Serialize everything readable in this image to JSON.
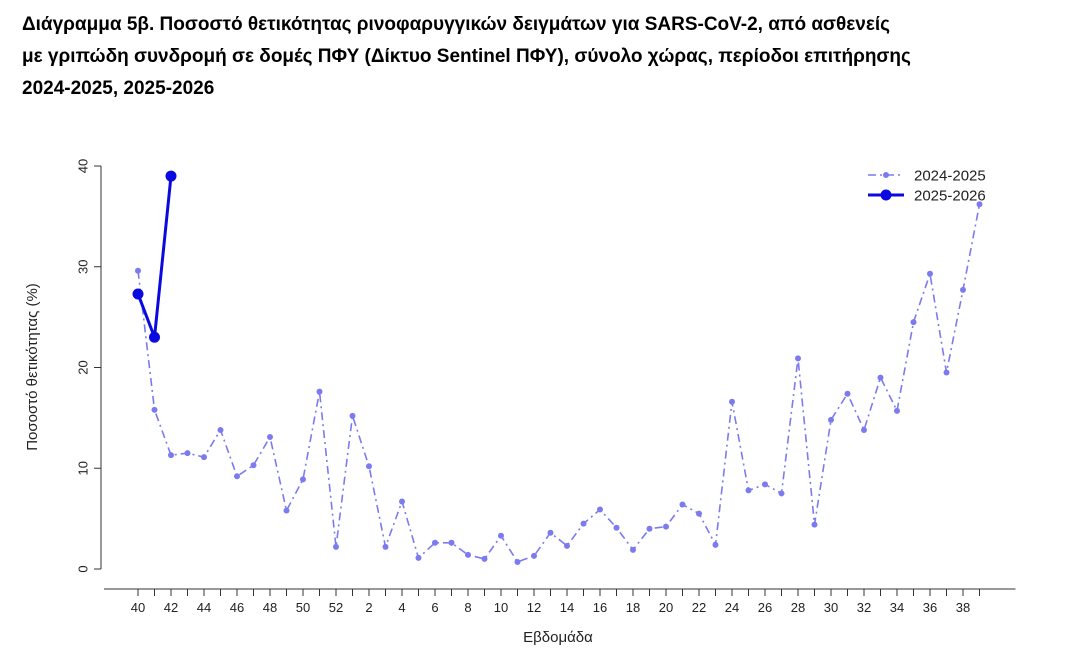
{
  "chart_data": {
    "type": "line",
    "title": [
      "Διάγραμμα 5β. Ποσοστό θετικότητας ρινοφαρυγγικών δειγμάτων για SARS-CoV-2, από ασθενείς",
      "με γριπώδη συνδρομή σε δομές ΠΦΥ (Δίκτυο Sentinel ΠΦΥ), σύνολο χώρας, περίοδοι επιτήρησης",
      "2024-2025, 2025-2026"
    ],
    "xlabel": "Εβδομάδα",
    "ylabel": "Ποσοστό θετικότητας (%)",
    "categories": [
      40,
      null,
      42,
      null,
      44,
      null,
      46,
      null,
      48,
      null,
      50,
      null,
      52,
      null,
      2,
      null,
      4,
      null,
      6,
      null,
      8,
      null,
      10,
      null,
      12,
      null,
      14,
      null,
      16,
      null,
      18,
      null,
      20,
      null,
      22,
      null,
      24,
      null,
      26,
      null,
      28,
      null,
      30,
      null,
      32,
      null,
      34,
      null,
      36,
      null,
      38,
      null
    ],
    "series": [
      {
        "name": "2024-2025",
        "color": "#7b7bef",
        "linestyle": "dashdot",
        "values": [
          29.6,
          15.8,
          11.3,
          11.5,
          11.1,
          13.8,
          9.2,
          10.3,
          13.1,
          5.8,
          8.9,
          17.6,
          2.2,
          15.2,
          10.2,
          2.2,
          6.7,
          1.1,
          2.6,
          2.6,
          1.4,
          1.0,
          3.3,
          0.7,
          1.3,
          3.6,
          2.3,
          4.5,
          5.9,
          4.1,
          1.9,
          4.0,
          4.2,
          6.4,
          5.5,
          2.4,
          16.6,
          7.8,
          8.4,
          7.5,
          20.9,
          4.4,
          14.8,
          17.4,
          13.8,
          19.0,
          15.7,
          24.5,
          29.3,
          19.5,
          27.7,
          36.2
        ]
      },
      {
        "name": "2025-2026",
        "color": "#0a0ae0",
        "linestyle": "solid",
        "values": [
          27.3,
          23.0,
          39.0,
          null,
          null,
          null,
          null,
          null,
          null,
          null,
          null,
          null,
          null,
          null,
          null,
          null,
          null,
          null,
          null,
          null,
          null,
          null,
          null,
          null,
          null,
          null,
          null,
          null,
          null,
          null,
          null,
          null,
          null,
          null,
          null,
          null,
          null,
          null,
          null,
          null,
          null,
          null,
          null,
          null,
          null,
          null,
          null,
          null,
          null,
          null,
          null,
          null
        ]
      }
    ],
    "ylim": [
      0,
      40
    ],
    "yticks": [
      0,
      10,
      20,
      30,
      40
    ],
    "legend": "upper right"
  }
}
